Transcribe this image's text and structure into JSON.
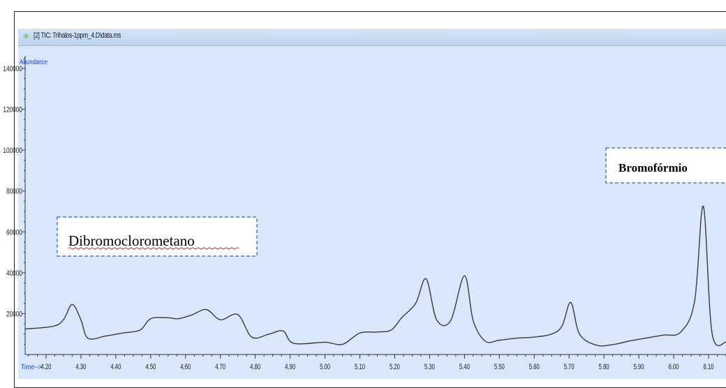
{
  "window": {
    "title": "[2] TIC: Trihalos-1ppm_4.D\\data.ms"
  },
  "icons": {
    "window_icon": "chromatogram-icon"
  },
  "colors": {
    "plot_bg": "#d8e7fb",
    "trace": "#3a3a3a",
    "axis_text": "#1a1a1a",
    "axis_label": "#1a3fd0",
    "callout_border": "#2f5fb3"
  },
  "annotations": [
    {
      "text": "Dibromoclorometano",
      "bold": false,
      "underline": true
    },
    {
      "text": "Bromofórmio",
      "bold": true,
      "underline": false
    }
  ],
  "chart_data": {
    "type": "line",
    "title": "",
    "xlabel": "Time-->",
    "ylabel": "Abundance",
    "xlim": [
      4.14,
      6.15
    ],
    "ylim": [
      0,
      155000
    ],
    "xticks": [
      "4.20",
      "4.30",
      "4.40",
      "4.50",
      "4.60",
      "4.70",
      "4.80",
      "4.90",
      "5.00",
      "5.10",
      "5.20",
      "5.30",
      "5.40",
      "5.50",
      "5.60",
      "5.70",
      "5.80",
      "5.90",
      "6.00",
      "6.10"
    ],
    "yticks": [
      "20000",
      "40000",
      "60000",
      "80000",
      "100000",
      "120000",
      "140000"
    ],
    "series": [
      {
        "x": [
          4.14,
          4.22,
          4.25,
          4.275,
          4.3,
          4.32,
          4.37,
          4.42,
          4.47,
          4.5,
          4.55,
          4.58,
          4.62,
          4.66,
          4.7,
          4.75,
          4.79,
          4.84,
          4.88,
          4.91,
          5.0,
          5.05,
          5.1,
          5.15,
          5.19,
          5.22,
          5.26,
          5.29,
          5.32,
          5.36,
          5.4,
          5.425,
          5.46,
          5.5,
          5.55,
          5.6,
          5.65,
          5.68,
          5.705,
          5.73,
          5.78,
          5.83,
          5.87,
          5.92,
          5.97,
          6.02,
          6.06,
          6.085,
          6.11,
          6.15
        ],
        "y": [
          12500,
          13800,
          17000,
          24500,
          17000,
          8000,
          9000,
          10500,
          12000,
          17500,
          18000,
          17500,
          19500,
          22000,
          17000,
          19500,
          8500,
          10000,
          11500,
          5500,
          6000,
          5000,
          10500,
          11000,
          12000,
          18000,
          25000,
          37000,
          17000,
          16500,
          38500,
          16500,
          6500,
          7000,
          8000,
          8500,
          10000,
          14000,
          25500,
          10000,
          4500,
          5000,
          6500,
          8000,
          9500,
          11000,
          26000,
          72500,
          10500,
          6000
        ]
      }
    ]
  }
}
